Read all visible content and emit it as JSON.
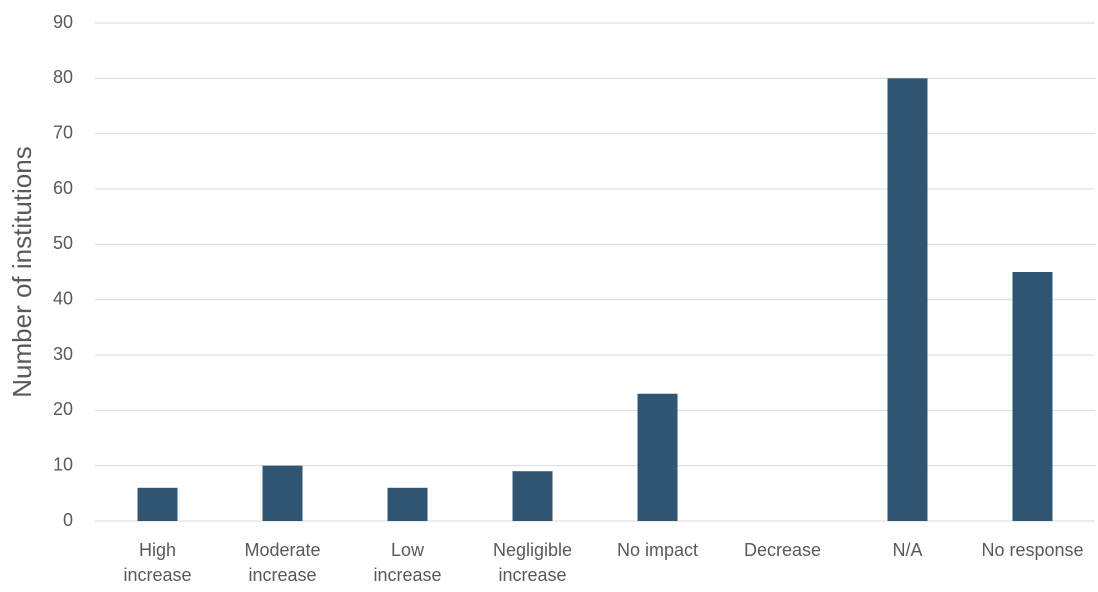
{
  "chart_data": {
    "type": "bar",
    "y_axis_label": "Number of institutions",
    "categories": [
      "High\nincrease",
      "Moderate\nincrease",
      "Low\nincrease",
      "Negligible\nincrease",
      "No impact",
      "Decrease",
      "N/A",
      "No response"
    ],
    "values": [
      6,
      10,
      6,
      9,
      23,
      0,
      80,
      45
    ],
    "color": "#2f5573",
    "ylim": [
      0,
      90
    ],
    "yticks": [
      0,
      10,
      20,
      30,
      40,
      50,
      60,
      70,
      80,
      90
    ],
    "grid": true
  }
}
